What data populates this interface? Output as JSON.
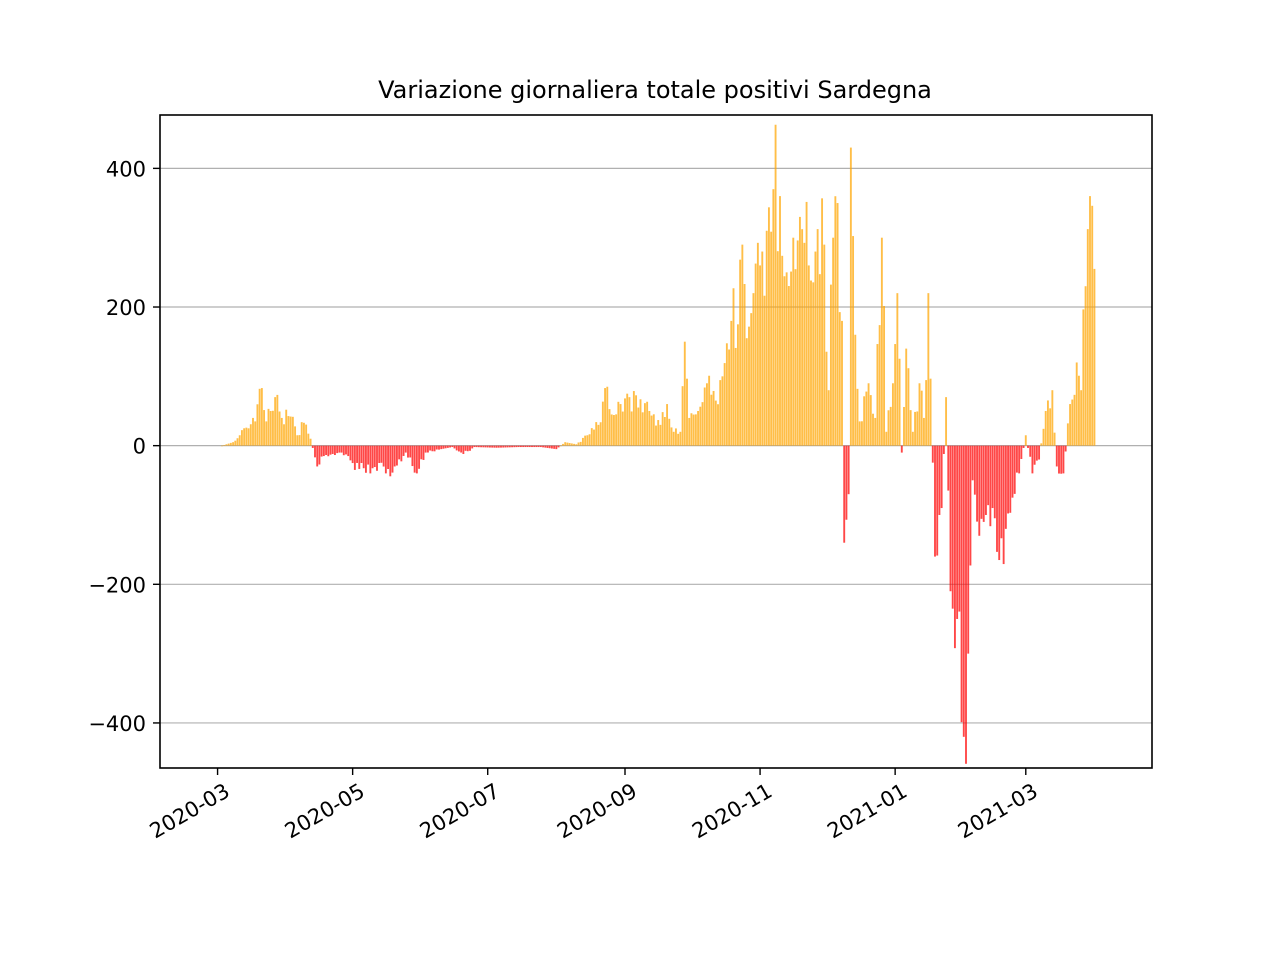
{
  "chart_data": {
    "type": "bar",
    "title": "Variazione giornaliera totale positivi Sardegna",
    "xlabel": "",
    "ylabel": "",
    "x_axis": "date",
    "xlim": [
      "2020-02-04",
      "2021-04-27"
    ],
    "ylim": [
      -465,
      477
    ],
    "yticks": [
      -400,
      -200,
      0,
      200,
      400
    ],
    "ytick_labels": [
      "−400",
      "−200",
      "0",
      "200",
      "400"
    ],
    "xticks": [
      "2020-03-01",
      "2020-05-01",
      "2020-07-01",
      "2020-09-01",
      "2020-11-01",
      "2021-01-01",
      "2021-03-01"
    ],
    "xtick_labels": [
      "2020-03",
      "2020-05",
      "2020-07",
      "2020-09",
      "2020-11",
      "2021-01",
      "2021-03"
    ],
    "grid": "y",
    "colors": {
      "positive": "#ffa500",
      "negative": "#ff0000",
      "grid": "#b0b0b0"
    },
    "start_date": "2020-03-03",
    "end_date": "2021-04-01",
    "keyframes": [
      [
        "2020-03-03",
        0
      ],
      [
        "2020-03-08",
        5
      ],
      [
        "2020-03-11",
        15
      ],
      [
        "2020-03-15",
        25
      ],
      [
        "2020-03-18",
        35
      ],
      [
        "2020-03-20",
        82
      ],
      [
        "2020-03-23",
        35
      ],
      [
        "2020-03-25",
        50
      ],
      [
        "2020-03-27",
        70
      ],
      [
        "2020-03-30",
        40
      ],
      [
        "2020-04-03",
        42
      ],
      [
        "2020-04-06",
        15
      ],
      [
        "2020-04-09",
        33
      ],
      [
        "2020-04-12",
        10
      ],
      [
        "2020-04-15",
        -30
      ],
      [
        "2020-04-18",
        -15
      ],
      [
        "2020-04-22",
        -12
      ],
      [
        "2020-04-25",
        -10
      ],
      [
        "2020-04-29",
        -15
      ],
      [
        "2020-05-02",
        -35
      ],
      [
        "2020-05-05",
        -25
      ],
      [
        "2020-05-09",
        -40
      ],
      [
        "2020-05-13",
        -25
      ],
      [
        "2020-05-16",
        -40
      ],
      [
        "2020-05-20",
        -30
      ],
      [
        "2020-05-25",
        -10
      ],
      [
        "2020-05-30",
        -40
      ],
      [
        "2020-06-03",
        -10
      ],
      [
        "2020-06-10",
        -5
      ],
      [
        "2020-06-15",
        -2
      ],
      [
        "2020-06-20",
        -12
      ],
      [
        "2020-06-25",
        -2
      ],
      [
        "2020-07-05",
        -3
      ],
      [
        "2020-07-15",
        -2
      ],
      [
        "2020-07-25",
        -2
      ],
      [
        "2020-08-01",
        -5
      ],
      [
        "2020-08-05",
        5
      ],
      [
        "2020-08-10",
        2
      ],
      [
        "2020-08-15",
        15
      ],
      [
        "2020-08-20",
        30
      ],
      [
        "2020-08-24",
        85
      ],
      [
        "2020-08-26",
        45
      ],
      [
        "2020-08-30",
        60
      ],
      [
        "2020-09-02",
        75
      ],
      [
        "2020-09-07",
        55
      ],
      [
        "2020-09-12",
        50
      ],
      [
        "2020-09-17",
        30
      ],
      [
        "2020-09-20",
        60
      ],
      [
        "2020-09-23",
        20
      ],
      [
        "2020-09-26",
        20
      ],
      [
        "2020-09-28",
        150
      ],
      [
        "2020-09-30",
        40
      ],
      [
        "2020-10-04",
        50
      ],
      [
        "2020-10-08",
        90
      ],
      [
        "2020-10-12",
        65
      ],
      [
        "2020-10-15",
        100
      ],
      [
        "2020-10-19",
        180
      ],
      [
        "2020-10-22",
        175
      ],
      [
        "2020-10-24",
        290
      ],
      [
        "2020-10-26",
        155
      ],
      [
        "2020-10-29",
        220
      ],
      [
        "2020-11-01",
        260
      ],
      [
        "2020-11-04",
        310
      ],
      [
        "2020-11-07",
        370
      ],
      [
        "2020-11-10",
        360
      ],
      [
        "2020-11-13",
        250
      ],
      [
        "2020-11-16",
        300
      ],
      [
        "2020-11-19",
        330
      ],
      [
        "2020-11-23",
        260
      ],
      [
        "2020-11-26",
        280
      ],
      [
        "2020-11-30",
        290
      ],
      [
        "2020-12-02",
        80
      ],
      [
        "2020-12-04",
        300
      ],
      [
        "2020-12-06",
        350
      ],
      [
        "2020-12-08",
        180
      ],
      [
        "2020-12-09",
        -140
      ],
      [
        "2020-12-11",
        -70
      ],
      [
        "2020-12-12",
        430
      ],
      [
        "2020-12-14",
        160
      ],
      [
        "2020-12-16",
        35
      ],
      [
        "2020-12-20",
        90
      ],
      [
        "2020-12-23",
        40
      ],
      [
        "2020-12-26",
        300
      ],
      [
        "2020-12-28",
        20
      ],
      [
        "2020-12-31",
        90
      ],
      [
        "2021-01-02",
        220
      ],
      [
        "2021-01-04",
        -10
      ],
      [
        "2021-01-06",
        140
      ],
      [
        "2021-01-09",
        20
      ],
      [
        "2021-01-12",
        90
      ],
      [
        "2021-01-14",
        40
      ],
      [
        "2021-01-16",
        220
      ],
      [
        "2021-01-19",
        -160
      ],
      [
        "2021-01-22",
        -90
      ],
      [
        "2021-01-24",
        70
      ],
      [
        "2021-01-26",
        -210
      ],
      [
        "2021-01-29",
        -250
      ],
      [
        "2021-02-01",
        -420
      ],
      [
        "2021-02-03",
        -300
      ],
      [
        "2021-02-05",
        -50
      ],
      [
        "2021-02-08",
        -130
      ],
      [
        "2021-02-11",
        -100
      ],
      [
        "2021-02-14",
        -90
      ],
      [
        "2021-02-17",
        -165
      ],
      [
        "2021-02-20",
        -120
      ],
      [
        "2021-02-23",
        -75
      ],
      [
        "2021-02-26",
        -40
      ],
      [
        "2021-03-01",
        15
      ],
      [
        "2021-03-04",
        -40
      ],
      [
        "2021-03-07",
        -20
      ],
      [
        "2021-03-10",
        50
      ],
      [
        "2021-03-13",
        80
      ],
      [
        "2021-03-15",
        -30
      ],
      [
        "2021-03-18",
        -40
      ],
      [
        "2021-03-21",
        60
      ],
      [
        "2021-03-24",
        120
      ],
      [
        "2021-03-26",
        80
      ],
      [
        "2021-03-28",
        230
      ],
      [
        "2021-03-30",
        360
      ],
      [
        "2021-04-01",
        255
      ]
    ]
  }
}
